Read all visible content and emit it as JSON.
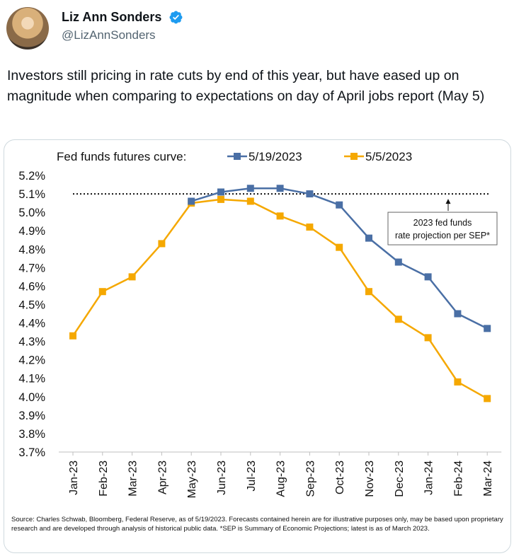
{
  "author": {
    "name": "Liz Ann Sonders",
    "handle": "@LizAnnSonders",
    "verified_icon": "verified-badge-icon",
    "badge_color": "#1d9bf0"
  },
  "tweet": {
    "text": "Investors still pricing in rate cuts by end of this year, but have eased up on magnitude when comparing to expectations on day of April jobs report (May 5)"
  },
  "chart_data": {
    "type": "line",
    "title": "Fed funds futures curve:",
    "categories": [
      "Jan-23",
      "Feb-23",
      "Mar-23",
      "Apr-23",
      "May-23",
      "Jun-23",
      "Jul-23",
      "Aug-23",
      "Sep-23",
      "Oct-23",
      "Nov-23",
      "Dec-23",
      "Jan-24",
      "Feb-24",
      "Mar-24"
    ],
    "series": [
      {
        "name": "5/19/2023",
        "color": "#4a6fa5",
        "values": [
          null,
          null,
          null,
          null,
          5.06,
          5.11,
          5.13,
          5.13,
          5.1,
          5.04,
          4.86,
          4.73,
          4.65,
          4.45,
          4.37
        ]
      },
      {
        "name": "5/5/2023",
        "color": "#f5a800",
        "values": [
          4.33,
          4.57,
          4.65,
          4.83,
          5.05,
          5.07,
          5.06,
          4.98,
          4.92,
          4.81,
          4.57,
          4.42,
          4.32,
          4.08,
          3.99
        ]
      }
    ],
    "reference_line": {
      "value": 5.1,
      "style": "dotted"
    },
    "annotation": "2023 fed funds rate projection per SEP*",
    "y_ticks": [
      "3.7%",
      "3.8%",
      "3.9%",
      "4.0%",
      "4.1%",
      "4.2%",
      "4.3%",
      "4.4%",
      "4.5%",
      "4.6%",
      "4.7%",
      "4.8%",
      "4.9%",
      "5.0%",
      "5.1%",
      "5.2%"
    ],
    "ylim": [
      3.7,
      5.2
    ],
    "grid": false,
    "legend_placement": "top"
  },
  "source_note": "Source: Charles Schwab, Bloomberg, Federal Reserve, as of 5/19/2023. Forecasts contained herein are for illustrative purposes only, may be based upon proprietary research and are developed through analysis of historical public data. *SEP is Summary of Economic Projections; latest is as of March 2023."
}
